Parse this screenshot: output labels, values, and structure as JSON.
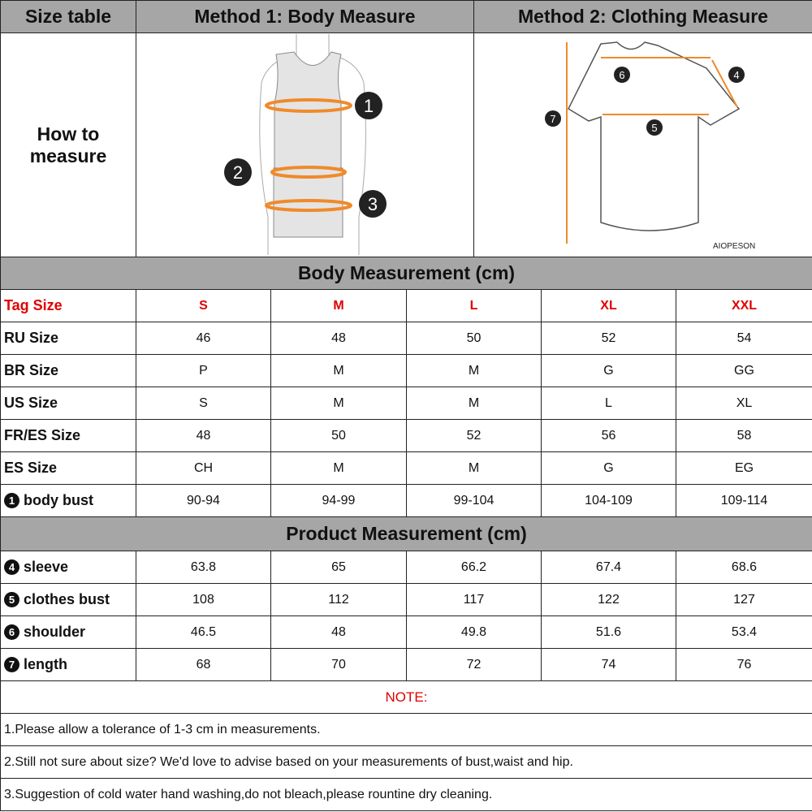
{
  "header": {
    "size_table": "Size table",
    "method1": "Method 1: Body  Measure",
    "method2": "Method 2: Clothing Measure"
  },
  "how_to": "How to measure",
  "illustration": {
    "body_markers": [
      "1",
      "2",
      "3"
    ],
    "shirt_markers": [
      "4",
      "5",
      "6",
      "7"
    ],
    "brand": "AIOPESON",
    "accent": "#f08a2a"
  },
  "body_title": "Body Measurement (cm)",
  "product_title": "Product Measurement (cm)",
  "columns": [
    "S",
    "M",
    "L",
    "XL",
    "XXL"
  ],
  "tag_label": "Tag Size",
  "body_rows": [
    {
      "label": "RU Size",
      "values": [
        "46",
        "48",
        "50",
        "52",
        "54"
      ]
    },
    {
      "label": "BR Size",
      "values": [
        "P",
        "M",
        "M",
        "G",
        "GG"
      ]
    },
    {
      "label": "US Size",
      "values": [
        "S",
        "M",
        "M",
        "L",
        "XL"
      ]
    },
    {
      "label": "FR/ES Size",
      "values": [
        "48",
        "50",
        "52",
        "56",
        "58"
      ]
    },
    {
      "label": "ES Size",
      "values": [
        "CH",
        "M",
        "M",
        "G",
        "EG"
      ]
    },
    {
      "num": "1",
      "label": "body bust",
      "values": [
        "90-94",
        "94-99",
        "99-104",
        "104-109",
        "109-114"
      ]
    }
  ],
  "product_rows": [
    {
      "num": "4",
      "label": "sleeve",
      "values": [
        "63.8",
        "65",
        "66.2",
        "67.4",
        "68.6"
      ]
    },
    {
      "num": "5",
      "label": "clothes bust",
      "values": [
        "108",
        "112",
        "117",
        "122",
        "127"
      ]
    },
    {
      "num": "6",
      "label": "shoulder",
      "values": [
        "46.5",
        "48",
        "49.8",
        "51.6",
        "53.4"
      ]
    },
    {
      "num": "7",
      "label": "length",
      "values": [
        "68",
        "70",
        "72",
        "74",
        "76"
      ]
    }
  ],
  "note_title": "NOTE:",
  "notes": [
    "1.Please allow a tolerance of 1-3 cm in measurements.",
    "2.Still not sure about size? We'd love to advise based on your measurements of bust,waist and hip.",
    "3.Suggestion of cold water hand washing,do not bleach,please rountine dry cleaning."
  ]
}
